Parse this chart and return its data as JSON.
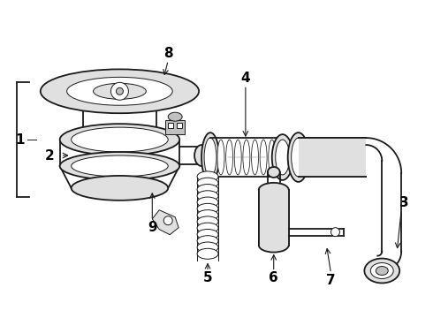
{
  "background_color": "#ffffff",
  "line_color": "#1a1a1a",
  "label_color": "#000000",
  "fig_width": 4.9,
  "fig_height": 3.6,
  "dpi": 100,
  "label_fontsize": 11,
  "lw_main": 1.3,
  "lw_thin": 0.7,
  "gray_fill": "#e0e0e0",
  "gray_dark": "#c0c0c0",
  "white_fill": "#ffffff"
}
